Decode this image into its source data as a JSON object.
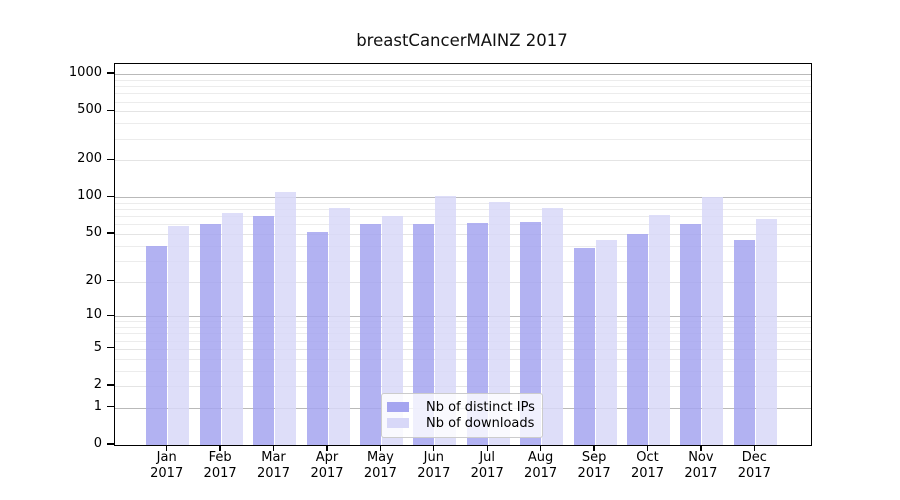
{
  "title": "breastCancerMAINZ 2017",
  "legend": {
    "items": [
      {
        "label": "Nb of distinct IPs",
        "color": "#a5a5f0"
      },
      {
        "label": "Nb of downloads",
        "color": "#d8d8f8"
      }
    ]
  },
  "colors": {
    "bar_distinct_ips": "#a5a5f0",
    "bar_downloads": "#d8d8f8",
    "grid_major": "#b9b9b9",
    "grid_minor": "#ececec",
    "axis": "#000000"
  },
  "chart_data": {
    "type": "bar",
    "title": "breastCancerMAINZ 2017",
    "categories": [
      "Jan 2017",
      "Feb 2017",
      "Mar 2017",
      "Apr 2017",
      "May 2017",
      "Jun 2017",
      "Jul 2017",
      "Aug 2017",
      "Sep 2017",
      "Oct 2017",
      "Nov 2017",
      "Dec 2017"
    ],
    "series": [
      {
        "name": "Nb of distinct IPs",
        "color": "#a5a5f0",
        "values": [
          40,
          60,
          70,
          52,
          61,
          60,
          62,
          63,
          38,
          50,
          60,
          45
        ]
      },
      {
        "name": "Nb of downloads",
        "color": "#d8d8f8",
        "values": [
          58,
          74,
          110,
          82,
          70,
          102,
          92,
          82,
          45,
          72,
          100,
          66
        ]
      }
    ],
    "yscale": "log1p",
    "yticks": [
      0,
      1,
      2,
      5,
      10,
      20,
      50,
      100,
      200,
      500,
      1000
    ],
    "ylim": [
      0,
      1200
    ],
    "grid": true,
    "legend_position": "inside lower center"
  }
}
